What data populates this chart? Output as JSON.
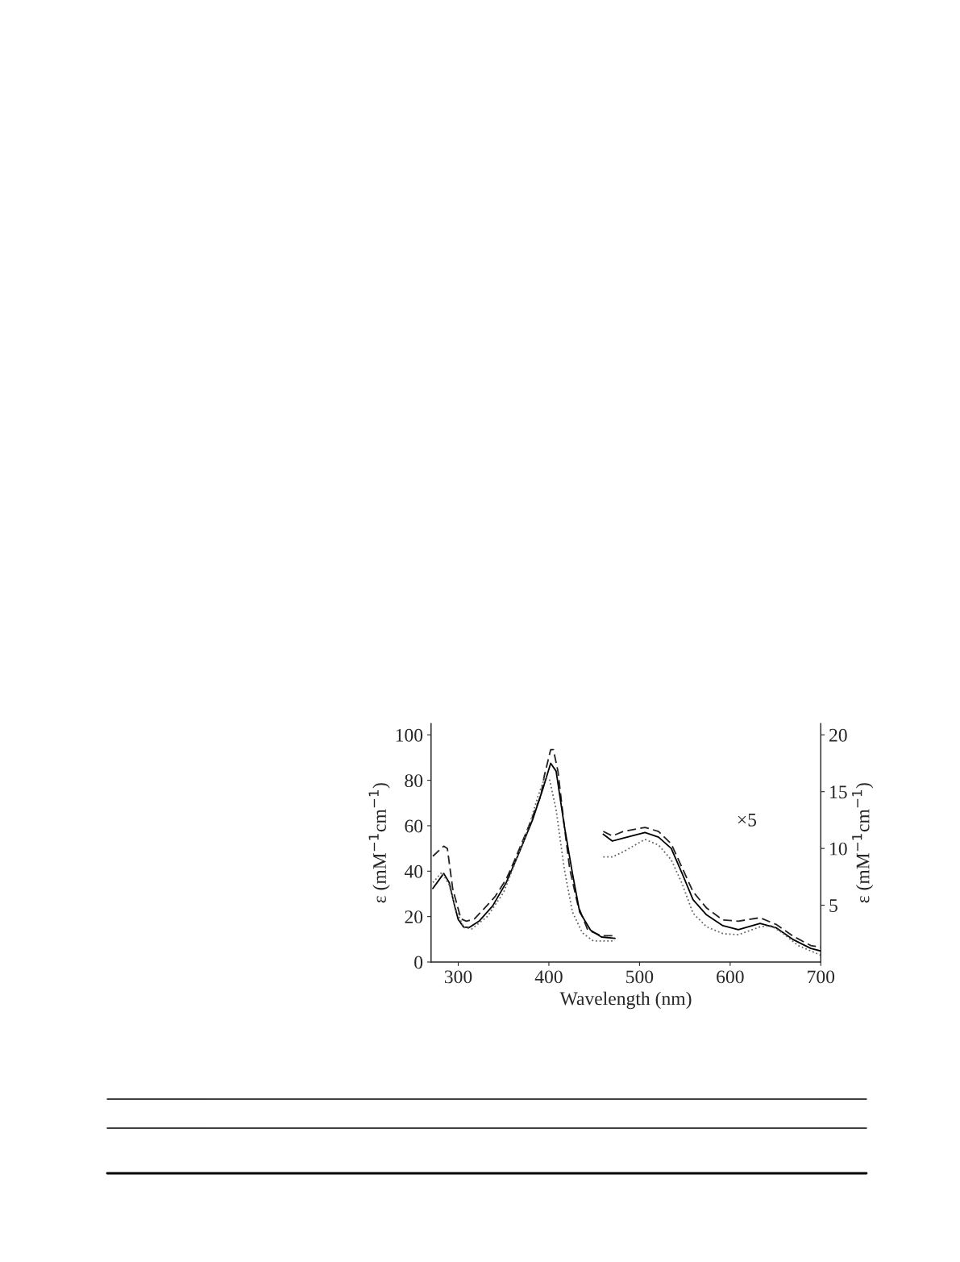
{
  "chart_data": {
    "type": "line",
    "xlabel": "Wavelength (nm)",
    "ylabel": "ε (mM$^{−1}$cm$^{−1}$)",
    "y2label": "ε (mM$^{−1}$cm$^{−1}$)",
    "xlim": [
      270,
      700
    ],
    "xticks": [
      300,
      400,
      500,
      600,
      700
    ],
    "ylim": [
      0,
      105
    ],
    "yticks": [
      0,
      20,
      40,
      60,
      80,
      100
    ],
    "y2lim": [
      0,
      21
    ],
    "y2ticks": [
      5,
      10,
      15,
      20
    ],
    "grid": false,
    "legend": false,
    "annotations": [
      "×5"
    ],
    "series": [
      {
        "color": "#222222",
        "line_style": "dashed",
        "x": [
          272,
          284,
          288,
          294,
          303,
          309,
          318,
          332,
          341,
          353,
          361,
          376,
          391,
          395,
          402,
          405,
          410,
          417,
          423,
          432,
          443,
          458,
          473
        ],
        "values": [
          46.6,
          51,
          50,
          32,
          19,
          18,
          19,
          25,
          29,
          36.5,
          43.7,
          58,
          73,
          82,
          93.5,
          93.5,
          84,
          60,
          41,
          25,
          14,
          11.6,
          11.6
        ]
      },
      {
        "color": "#000000",
        "line_style": "solid",
        "x": [
          272,
          284,
          290,
          296,
          300,
          306,
          312,
          323,
          338,
          353,
          367,
          382,
          394,
          402,
          408,
          417,
          426,
          434,
          446,
          458,
          473
        ],
        "values": [
          32.4,
          39,
          35,
          24.7,
          18.7,
          15.4,
          15.2,
          18,
          24.7,
          35,
          48,
          62.6,
          77,
          87.5,
          84,
          60,
          39,
          22,
          14,
          11,
          10.4
        ]
      },
      {
        "color": "#666666",
        "line_style": "dotted",
        "x": [
          272,
          282,
          290,
          297,
          306,
          315,
          332,
          350,
          367,
          379,
          388,
          396,
          401,
          408,
          417,
          426,
          437,
          449,
          473
        ],
        "values": [
          35,
          39.5,
          34,
          23.5,
          15.2,
          14.6,
          20,
          30.6,
          48,
          61,
          73,
          81.6,
          80,
          67,
          41,
          22,
          12.8,
          9.3,
          9.3
        ]
      },
      {
        "color": "#222222",
        "line_style": "dashed",
        "axis": "y2",
        "x": [
          460,
          470,
          482,
          506,
          521,
          535,
          547,
          559,
          574,
          592,
          609,
          633,
          651,
          669,
          689,
          700
        ],
        "values": [
          11.5,
          11.1,
          11.5,
          11.85,
          11.5,
          10.4,
          8.3,
          6.2,
          4.75,
          3.7,
          3.6,
          3.9,
          3.3,
          2.3,
          1.45,
          1.3
        ]
      },
      {
        "color": "#000000",
        "line_style": "solid",
        "axis": "y2",
        "x": [
          460,
          470,
          482,
          506,
          521,
          535,
          547,
          559,
          574,
          592,
          609,
          633,
          651,
          669,
          689,
          700
        ],
        "values": [
          11.25,
          10.65,
          10.9,
          11.4,
          11.0,
          10.0,
          7.8,
          5.5,
          4.15,
          3.2,
          2.85,
          3.4,
          3.0,
          2.0,
          1.2,
          0.97
        ]
      },
      {
        "color": "#666666",
        "line_style": "dotted",
        "axis": "y2",
        "x": [
          460,
          470,
          482,
          506,
          521,
          535,
          547,
          559,
          574,
          592,
          609,
          633,
          645,
          657,
          675,
          700
        ],
        "values": [
          9.25,
          9.25,
          9.7,
          10.8,
          10.3,
          9.0,
          6.9,
          4.3,
          3.1,
          2.5,
          2.4,
          3.1,
          3.2,
          2.6,
          1.45,
          0.6
        ]
      }
    ]
  }
}
